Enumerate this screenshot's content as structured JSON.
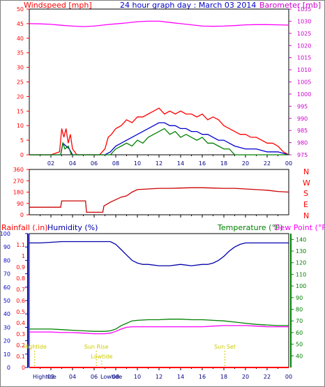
{
  "chart_data": [
    {
      "type": "line",
      "panel": "wind-pressure",
      "title": "24 hour graph day : March 03 2014",
      "left_label": "Windspeed [mph]",
      "right_label": "Barometer [mb]",
      "x_ticks": [
        "02",
        "04",
        "06",
        "08",
        "10",
        "12",
        "14",
        "16",
        "18",
        "20",
        "22",
        "00"
      ],
      "y_left": {
        "min": 0,
        "max": 50,
        "ticks": [
          0,
          5,
          10,
          15,
          20,
          25,
          30,
          35,
          40,
          45,
          50
        ]
      },
      "y_right": {
        "min": 975,
        "max": 1035,
        "ticks": [
          975,
          980,
          985,
          990,
          995,
          1000,
          1005,
          1010,
          1015,
          1020,
          1025,
          1030,
          1035
        ]
      },
      "series": [
        {
          "role": "gust",
          "color": "#ff0000",
          "axis": "left",
          "x": [
            0,
            2,
            2.8,
            3.0,
            3.2,
            3.4,
            3.6,
            3.8,
            4.0,
            4.2,
            4.4,
            6.5,
            7.0,
            7.3,
            7.6,
            8.0,
            8.5,
            9.0,
            9.5,
            10.0,
            10.5,
            11.0,
            11.5,
            12.0,
            12.5,
            13.0,
            13.5,
            14.0,
            14.5,
            15.0,
            15.5,
            16.0,
            16.5,
            17.0,
            17.5,
            18.0,
            18.5,
            19.0,
            19.5,
            20.0,
            20.5,
            21.0,
            21.5,
            22.0,
            22.5,
            23.0,
            23.5,
            24.0
          ],
          "y": [
            0,
            0,
            1,
            9,
            6,
            9,
            4,
            7,
            2,
            1,
            0,
            0,
            2,
            6,
            7,
            9,
            10,
            12,
            11,
            13,
            13,
            14,
            15,
            16,
            14,
            15,
            14,
            15,
            14,
            14,
            13,
            14,
            12,
            13,
            12,
            10,
            9,
            8,
            7,
            7,
            6,
            6,
            5,
            4,
            4,
            3,
            1,
            0
          ]
        },
        {
          "role": "average",
          "color": "#0000cc",
          "axis": "left",
          "x": [
            0,
            2.9,
            3.1,
            3.4,
            3.7,
            4.0,
            7.0,
            7.5,
            8.0,
            8.5,
            9.0,
            9.5,
            10.0,
            10.5,
            11.0,
            11.5,
            12.0,
            12.5,
            13.0,
            13.5,
            14.0,
            14.5,
            15.0,
            15.5,
            16.0,
            16.5,
            17.0,
            17.5,
            18.0,
            18.5,
            19.0,
            20.0,
            21.0,
            22.0,
            23.0,
            24.0
          ],
          "y": [
            0,
            0,
            4,
            3,
            2,
            0,
            0,
            1,
            3,
            4,
            5,
            6,
            7,
            8,
            9,
            10,
            11,
            11,
            10,
            10,
            9,
            9,
            8,
            8,
            7,
            7,
            6,
            5,
            5,
            4,
            3,
            2,
            2,
            1,
            1,
            0
          ]
        },
        {
          "role": "speed",
          "color": "#008000",
          "axis": "left",
          "x": [
            0,
            2.9,
            3.1,
            3.3,
            3.6,
            3.9,
            7.5,
            8.0,
            8.5,
            9.0,
            9.5,
            10.0,
            10.5,
            11.0,
            11.5,
            12.0,
            12.5,
            13.0,
            13.5,
            14.0,
            14.5,
            15.0,
            15.5,
            16.0,
            16.5,
            17.0,
            17.5,
            18.0,
            18.5,
            19.0,
            24.0
          ],
          "y": [
            0,
            0,
            4,
            2,
            3,
            0,
            0,
            2,
            3,
            4,
            3,
            5,
            4,
            6,
            7,
            8,
            9,
            7,
            8,
            6,
            7,
            6,
            5,
            6,
            4,
            4,
            3,
            2,
            2,
            0,
            0
          ]
        },
        {
          "role": "barometer",
          "color": "#ff00ff",
          "axis": "right",
          "x": [
            0,
            1,
            2,
            3,
            4,
            5,
            6,
            7,
            8,
            9,
            10,
            11,
            12,
            13,
            14,
            15,
            16,
            17,
            18,
            19,
            20,
            21,
            22,
            23,
            24
          ],
          "y": [
            1029.0,
            1028.9,
            1028.7,
            1028.3,
            1028.0,
            1027.8,
            1028.0,
            1028.5,
            1028.9,
            1029.3,
            1029.8,
            1030.0,
            1030.0,
            1029.5,
            1029.0,
            1028.5,
            1028.0,
            1027.9,
            1028.0,
            1028.2,
            1028.5,
            1028.6,
            1028.6,
            1028.5,
            1028.4
          ]
        }
      ]
    },
    {
      "type": "line",
      "panel": "wind-direction",
      "x_ticks": [
        "02",
        "04",
        "06",
        "08",
        "10",
        "12",
        "14",
        "16",
        "18",
        "20",
        "22",
        "00"
      ],
      "y_left": {
        "min": 0,
        "max": 360,
        "ticks": [
          0,
          90,
          180,
          270,
          360
        ]
      },
      "compass": [
        "N",
        "W",
        "S",
        "E",
        "N"
      ],
      "series": [
        {
          "role": "direction",
          "color": "#cc0000",
          "x": [
            0,
            2.0,
            2.9,
            3.0,
            4.0,
            4.6,
            5.2,
            5.3,
            6.8,
            6.9,
            7.5,
            8.0,
            8.5,
            9.0,
            9.5,
            10.0,
            11.0,
            12.0,
            13.0,
            14.0,
            15.0,
            16.0,
            17.0,
            18.0,
            19.0,
            20.0,
            21.0,
            22.0,
            23.0,
            24.0
          ],
          "y": [
            60,
            60,
            60,
            110,
            110,
            110,
            110,
            20,
            20,
            70,
            100,
            120,
            140,
            150,
            180,
            200,
            205,
            210,
            210,
            212,
            215,
            215,
            212,
            210,
            210,
            205,
            200,
            195,
            185,
            180
          ]
        }
      ]
    },
    {
      "type": "line",
      "panel": "rain-humidity-temperature",
      "left_label_1": "Rainfall (.in)",
      "left_label_2": "Humidity (%)",
      "right_label_1": "Temperature (°F)",
      "right_label_2": "Dew Point (°F)",
      "x_ticks": [
        "02",
        "04",
        "06",
        "08",
        "10",
        "12",
        "14",
        "16",
        "18",
        "20",
        "22",
        "00"
      ],
      "y_humidity": {
        "min": 0,
        "max": 100,
        "ticks": [
          0,
          10,
          20,
          30,
          40,
          50,
          60,
          70,
          80,
          90,
          100
        ]
      },
      "y_rain": {
        "min": 0,
        "max": 1.2,
        "ticks": [
          0,
          0.1,
          0.2,
          0.3,
          0.4,
          0.5,
          0.6,
          0.7,
          0.8,
          0.9,
          1,
          1.1
        ]
      },
      "y_temp": {
        "min": 30,
        "max": 145,
        "ticks": [
          40,
          50,
          60,
          70,
          80,
          90,
          100,
          110,
          120,
          130,
          140
        ]
      },
      "annotations": [
        {
          "text": "Hightide",
          "hour": 0.5,
          "pos": "mid"
        },
        {
          "text": "Sun Rise",
          "hour": 6.2,
          "pos": "mid"
        },
        {
          "text": "Lowtide",
          "hour": 6.7,
          "pos": "low"
        },
        {
          "text": "Sun Set",
          "hour": 18.1,
          "pos": "mid"
        }
      ],
      "bottom_labels": [
        "Hightide",
        "Lowtide"
      ],
      "series": [
        {
          "role": "humidity",
          "color": "#0000aa",
          "axis": "humidity",
          "x": [
            0,
            1,
            2,
            3,
            4,
            5,
            6,
            7,
            7.5,
            8.0,
            8.5,
            9.0,
            9.5,
            10.0,
            10.5,
            11,
            12,
            13,
            14,
            15,
            16,
            16.5,
            17.0,
            17.5,
            18.0,
            18.5,
            19.0,
            19.5,
            20,
            21,
            22,
            23,
            24
          ],
          "y": [
            93,
            93,
            93.5,
            94,
            94,
            94,
            94,
            94,
            94,
            92,
            88,
            84,
            80,
            78,
            77,
            77,
            76,
            76,
            77,
            76,
            77,
            77,
            78,
            80,
            83,
            87,
            90,
            92,
            93,
            93,
            93,
            93,
            93
          ]
        },
        {
          "role": "temperature",
          "color": "#008000",
          "axis": "temp",
          "x": [
            0,
            1,
            2,
            3,
            4,
            5,
            6,
            7,
            7.5,
            8.0,
            8.5,
            9.0,
            9.5,
            10,
            11,
            12,
            13,
            14,
            15,
            16,
            17,
            18,
            19,
            20,
            21,
            22,
            23,
            24
          ],
          "y": [
            63,
            63,
            63,
            62.5,
            62,
            61.5,
            61,
            61,
            61.5,
            63,
            66,
            68,
            70,
            70.5,
            71,
            71,
            71.5,
            71.5,
            71,
            71,
            70.5,
            70,
            69,
            68,
            67,
            66.5,
            66,
            66
          ]
        },
        {
          "role": "dew-point",
          "color": "#ff00ff",
          "axis": "temp",
          "x": [
            0,
            1,
            2,
            3,
            4,
            5,
            6,
            7,
            7.5,
            8.0,
            8.5,
            9.0,
            9.5,
            10,
            11,
            12,
            13,
            14,
            15,
            16,
            17,
            18,
            19,
            20,
            21,
            22,
            23,
            24
          ],
          "y": [
            60.5,
            60.5,
            60.5,
            60,
            60,
            59.5,
            59,
            59,
            59.5,
            61,
            63,
            64.5,
            65,
            65,
            65,
            65,
            65,
            65,
            65,
            65,
            65.5,
            66,
            66,
            66,
            65.5,
            65,
            65,
            65
          ]
        },
        {
          "role": "rainfall",
          "color": "#ff0000",
          "axis": "rain",
          "x": [
            0,
            24
          ],
          "y": [
            0,
            0
          ]
        }
      ]
    }
  ]
}
